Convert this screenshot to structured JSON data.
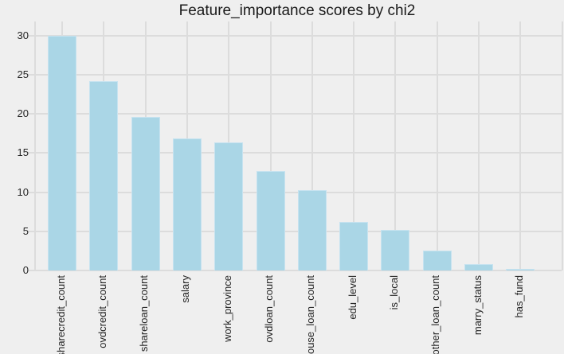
{
  "title": "Feature_importance scores by chi2",
  "chart_data": {
    "type": "bar",
    "title": "Feature_importance scores by chi2",
    "categories": [
      "sharecredit_count",
      "ovdcredit_count",
      "shareloan_count",
      "salary",
      "work_province",
      "ovdloan_count",
      "house_loan_count",
      "edu_level",
      "is_local",
      "other_loan_count",
      "marry_status",
      "has_fund"
    ],
    "values": [
      30.0,
      24.2,
      19.6,
      16.9,
      16.3,
      12.7,
      10.3,
      6.2,
      5.2,
      2.5,
      0.8,
      0.2
    ],
    "xlabel": "",
    "ylabel": "",
    "ylim": [
      0,
      31.8
    ],
    "yticks": [
      0,
      5,
      10,
      15,
      20,
      25,
      30
    ],
    "grid": "both",
    "legend": "none",
    "colors": {
      "bar_fill": "#aad6e6",
      "bar_edge": "#c7e3f0",
      "background": "#efefef",
      "gridline": "#dcdcdc",
      "text": "#1a1a1a",
      "tick_text": "#262626"
    }
  }
}
